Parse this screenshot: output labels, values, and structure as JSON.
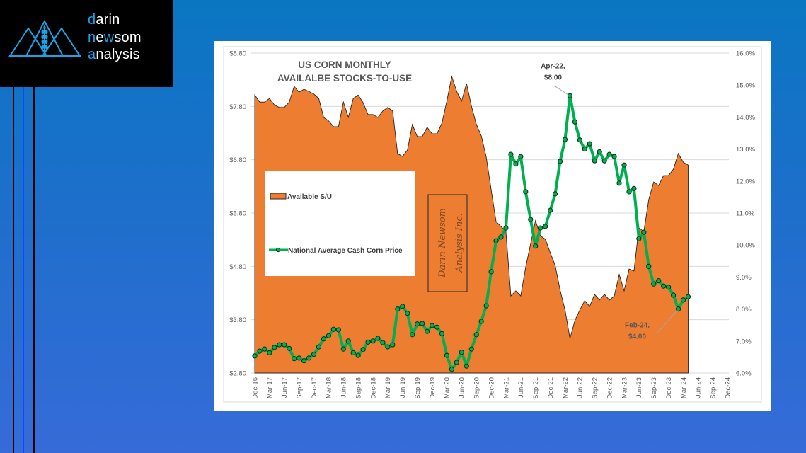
{
  "logo": {
    "lines": [
      [
        {
          "text": "d",
          "accent": true
        },
        {
          "text": "arin",
          "accent": false
        }
      ],
      [
        {
          "text": "n",
          "accent": true
        },
        {
          "text": "e",
          "accent": false
        },
        {
          "text": "w",
          "accent": true
        },
        {
          "text": "som",
          "accent": false
        }
      ],
      [
        {
          "text": "a",
          "accent": true
        },
        {
          "text": "nalysis",
          "accent": false
        }
      ]
    ],
    "icon": "mountains-wheat-icon",
    "accent_color": "#1aa3e8"
  },
  "colors": {
    "background_top": "#0a76c2",
    "background_bottom": "#366bd8",
    "area_fill": "#ED7D31",
    "price_line": "#00B050"
  },
  "chart_data": {
    "type": "area",
    "title": "US CORN MONTHLY AVAILALBE STOCKS-TO-USE",
    "title_lines": [
      "US CORN MONTHLY",
      "AVAILALBE STOCKS-TO-USE"
    ],
    "xlabel": "",
    "x_tick_step_months": 3,
    "x_ticks": [
      "Dec-16",
      "Mar-17",
      "Jun-17",
      "Sep-17",
      "Dec-17",
      "Mar-18",
      "Jun-18",
      "Sep-18",
      "Dec-18",
      "Mar-19",
      "Jun-19",
      "Sep-19",
      "Dec-19",
      "Mar-20",
      "Jun-20",
      "Sep-20",
      "Dec-20",
      "Mar-21",
      "Jun-21",
      "Sep-21",
      "Dec-21",
      "Mar-22",
      "Jun-22",
      "Sep-22",
      "Dec-22",
      "Mar-23",
      "Jun-23",
      "Sep-23",
      "Dec-23",
      "Mar-24",
      "Jun-24",
      "Sep-24",
      "Dec-24"
    ],
    "xlim": [
      "Dec-16",
      "Dec-24"
    ],
    "y_left": {
      "label": "",
      "range": [
        2.8,
        8.8
      ],
      "tick_values": [
        8.8,
        7.8,
        6.8,
        5.8,
        4.8,
        3.8,
        2.8
      ],
      "ticks": [
        "$8.80",
        "$7.80",
        "$6.80",
        "$5.80",
        "$4.80",
        "$3.80",
        "$2.80"
      ]
    },
    "y_right": {
      "label": "",
      "range": [
        6.0,
        16.0
      ],
      "tick_values": [
        16,
        15,
        14,
        13,
        12,
        11,
        10,
        9,
        8,
        7,
        6
      ],
      "ticks": [
        "16.0%",
        "15.0%",
        "14.0%",
        "13.0%",
        "12.0%",
        "11.0%",
        "10.0%",
        "9.0%",
        "8.0%",
        "7.0%",
        "6.0%"
      ]
    },
    "grid": true,
    "legend": {
      "placement": "center-left",
      "entries": [
        "Available S/U",
        "National Average Cash Corn Price"
      ]
    },
    "x": [
      "Dec-16",
      "Jan-17",
      "Feb-17",
      "Mar-17",
      "Apr-17",
      "May-17",
      "Jun-17",
      "Jul-17",
      "Aug-17",
      "Sep-17",
      "Oct-17",
      "Nov-17",
      "Dec-17",
      "Jan-18",
      "Feb-18",
      "Mar-18",
      "Apr-18",
      "May-18",
      "Jun-18",
      "Jul-18",
      "Aug-18",
      "Sep-18",
      "Oct-18",
      "Nov-18",
      "Dec-18",
      "Jan-19",
      "Feb-19",
      "Mar-19",
      "Apr-19",
      "May-19",
      "Jun-19",
      "Jul-19",
      "Aug-19",
      "Sep-19",
      "Oct-19",
      "Nov-19",
      "Dec-19",
      "Jan-20",
      "Feb-20",
      "Mar-20",
      "Apr-20",
      "May-20",
      "Jun-20",
      "Jul-20",
      "Aug-20",
      "Sep-20",
      "Oct-20",
      "Nov-20",
      "Dec-20",
      "Jan-21",
      "Feb-21",
      "Mar-21",
      "Apr-21",
      "May-21",
      "Jun-21",
      "Jul-21",
      "Aug-21",
      "Sep-21",
      "Oct-21",
      "Nov-21",
      "Dec-21",
      "Jan-22",
      "Feb-22",
      "Mar-22",
      "Apr-22",
      "May-22",
      "Jun-22",
      "Jul-22",
      "Aug-22",
      "Sep-22",
      "Oct-22",
      "Nov-22",
      "Dec-22",
      "Jan-23",
      "Feb-23",
      "Mar-23",
      "Apr-23",
      "May-23",
      "Jun-23",
      "Jul-23",
      "Aug-23",
      "Sep-23",
      "Oct-23",
      "Nov-23",
      "Dec-23",
      "Jan-24",
      "Feb-24",
      "Mar-24",
      "Apr-24"
    ],
    "series": [
      {
        "name": "Available S/U",
        "type": "area",
        "axis": "right",
        "unit": "%",
        "values": [
          14.69,
          14.47,
          14.47,
          14.58,
          14.38,
          14.3,
          14.3,
          14.47,
          14.96,
          14.78,
          14.87,
          14.8,
          14.72,
          14.58,
          13.99,
          13.88,
          13.7,
          13.7,
          14.47,
          13.99,
          14.58,
          14.69,
          14.45,
          14.08,
          14.08,
          13.99,
          14.19,
          14.3,
          14.19,
          12.86,
          12.77,
          12.97,
          13.77,
          13.39,
          13.39,
          13.68,
          13.48,
          13.48,
          13.81,
          14.5,
          15.27,
          14.8,
          14.5,
          15.05,
          14.34,
          13.77,
          13.41,
          12.75,
          11.73,
          10.73,
          10.58,
          10.42,
          8.41,
          8.57,
          8.41,
          9.3,
          10.03,
          10.76,
          10.29,
          10.18,
          9.76,
          9.36,
          8.59,
          7.97,
          7.08,
          7.64,
          7.97,
          8.26,
          8.08,
          8.46,
          8.28,
          8.46,
          8.28,
          8.41,
          9.08,
          8.57,
          9.25,
          9.19,
          10.54,
          10.42,
          11.42,
          11.97,
          11.86,
          12.17,
          12.17,
          12.37,
          12.86,
          12.59,
          12.5
        ]
      },
      {
        "name": "National Average Cash Corn Price",
        "type": "line",
        "axis": "left",
        "unit": "$/bu",
        "values": [
          3.12,
          3.21,
          3.25,
          3.18,
          3.28,
          3.33,
          3.33,
          3.26,
          3.07,
          3.08,
          3.03,
          3.08,
          3.15,
          3.29,
          3.44,
          3.5,
          3.62,
          3.61,
          3.25,
          3.4,
          3.18,
          3.13,
          3.24,
          3.38,
          3.4,
          3.45,
          3.37,
          3.29,
          3.33,
          4.0,
          4.05,
          3.92,
          3.52,
          3.72,
          3.73,
          3.58,
          3.69,
          3.66,
          3.54,
          3.13,
          2.87,
          3.0,
          3.19,
          2.93,
          3.25,
          3.52,
          3.77,
          4.06,
          4.7,
          5.28,
          5.35,
          5.52,
          6.9,
          6.72,
          6.86,
          6.2,
          5.68,
          5.18,
          5.52,
          5.55,
          5.85,
          6.16,
          6.77,
          7.18,
          8.0,
          7.51,
          7.17,
          7.0,
          7.1,
          6.78,
          6.95,
          6.78,
          6.9,
          6.86,
          6.36,
          6.7,
          6.2,
          6.26,
          5.32,
          5.44,
          4.8,
          4.47,
          4.53,
          4.43,
          4.41,
          4.26,
          4.0,
          4.17,
          4.23
        ]
      }
    ],
    "annotations": [
      {
        "x": "Apr-22",
        "series": "National Average Cash Corn Price",
        "value": 8.0,
        "lines": [
          "Apr-22,",
          "$8.00"
        ]
      },
      {
        "x": "Feb-24",
        "series": "National Average Cash Corn Price",
        "value": 4.0,
        "lines": [
          "Feb-24,",
          "$4.00"
        ]
      }
    ],
    "watermark_lines": [
      "Darin Newsom",
      "Analysis Inc."
    ]
  }
}
